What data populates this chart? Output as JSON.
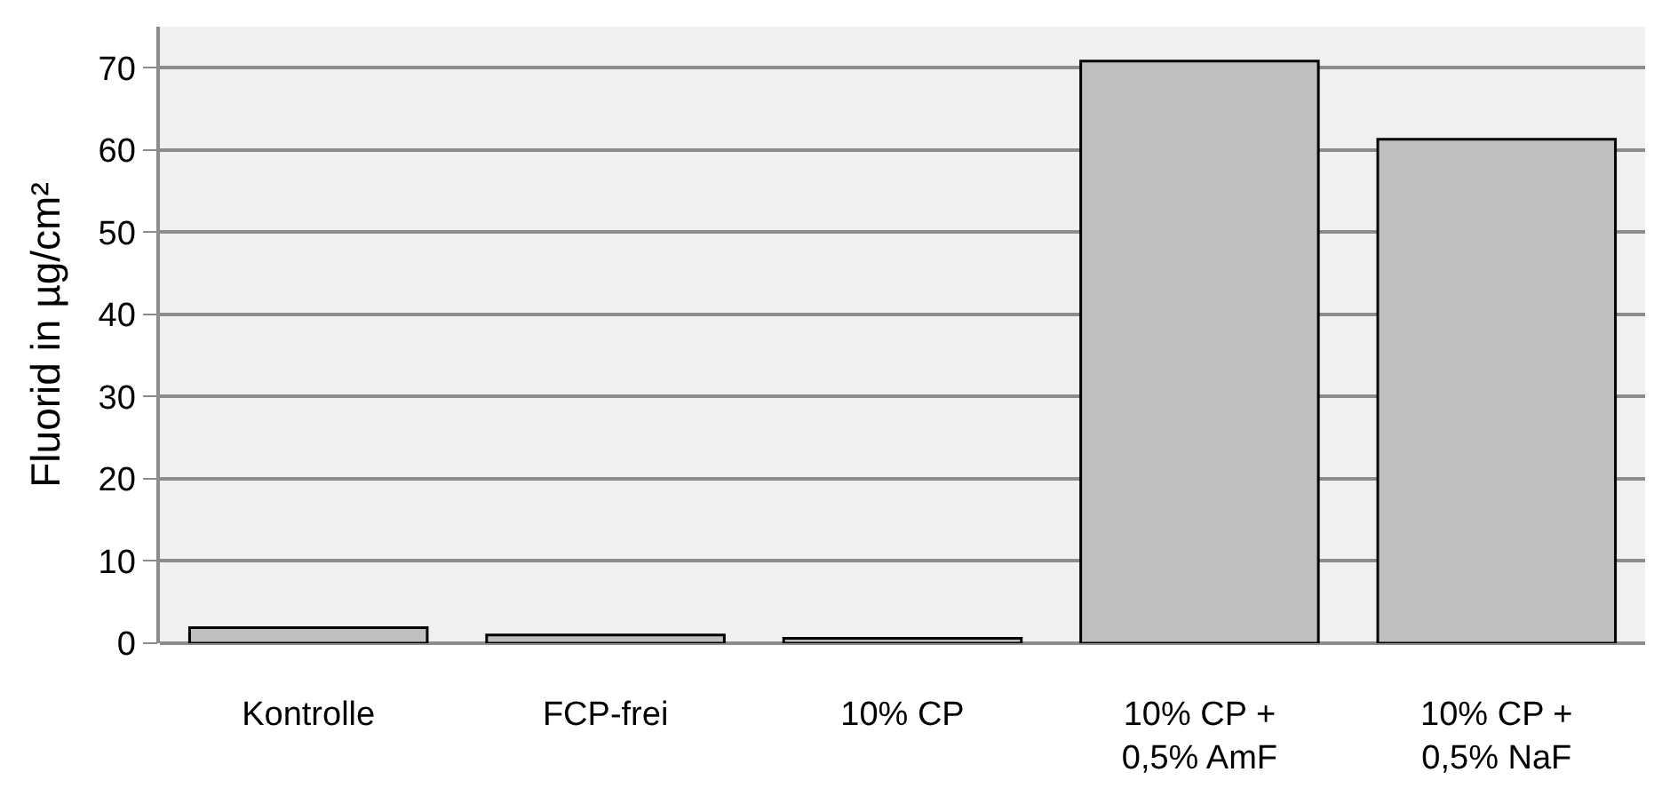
{
  "chart_data": {
    "type": "bar",
    "ylabel": "Fluorid in µg/cm²",
    "categories": [
      "Kontrolle",
      "FCP-frei",
      "10% CP",
      "10% CP +\n0,5% AmF",
      "10% CP +\n0,5% NaF"
    ],
    "values": [
      1.9,
      1.0,
      0.6,
      70.8,
      61.3
    ],
    "color": "#bfbfbf",
    "ylim": [
      0,
      75
    ],
    "yticks": [
      0,
      10,
      20,
      30,
      40,
      50,
      60,
      70
    ],
    "grid": "y"
  }
}
